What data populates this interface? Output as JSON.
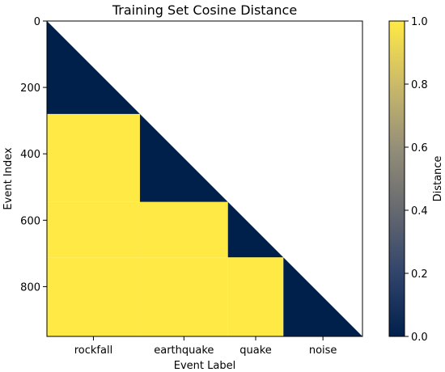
{
  "chart_data": {
    "type": "heatmap",
    "title": "Training Set Cosine Distance",
    "xlabel": "Event Label",
    "ylabel": "Event Index",
    "colorbar_label": "Distance",
    "n_events": 950,
    "x_categories": [
      {
        "label": "rockfall",
        "start": 0,
        "end": 280
      },
      {
        "label": "earthquake",
        "start": 280,
        "end": 545
      },
      {
        "label": "quake",
        "start": 545,
        "end": 712
      },
      {
        "label": "noise",
        "start": 712,
        "end": 950
      }
    ],
    "y_ticks": [
      0,
      200,
      400,
      600,
      800
    ],
    "y_range": [
      0,
      950
    ],
    "colorbar_range": [
      0.0,
      1.0
    ],
    "colorbar_ticks": [
      "0.0",
      "0.2",
      "0.4",
      "0.6",
      "0.8",
      "1.0"
    ],
    "colormap": [
      "#00204c",
      "#31446b",
      "#666970",
      "#958f78",
      "#cbba69",
      "#ffe945"
    ],
    "within_class_distance": 0.0,
    "between_class_distance": 1.0,
    "masked": "upper-triangle"
  }
}
